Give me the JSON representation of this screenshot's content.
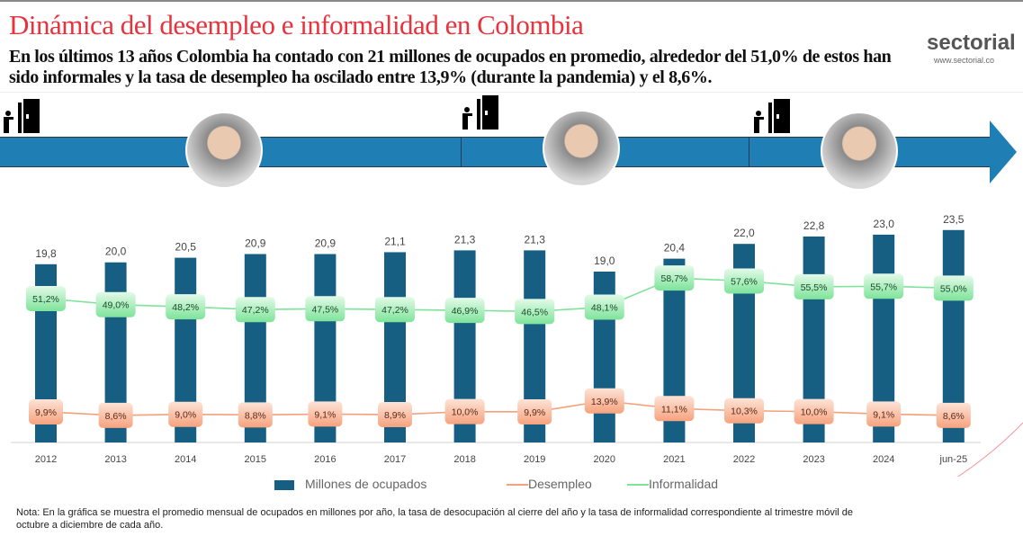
{
  "header": {
    "title": "Dinámica del desempleo e informalidad en Colombia",
    "subtitle": "En los últimos 13 años Colombia ha contado con 21 millones de ocupados en promedio, alrededor del 51,0% de estos han sido informales y la tasa de desempleo ha oscilado entre 13,9% (durante la pandemia) y el 8,6%.",
    "logo": "sectorial",
    "logo_url": "www.sectorial.co"
  },
  "timeline": {
    "icons": [
      "door-exit-icon",
      "door-exit-icon",
      "door-exit-icon"
    ],
    "photos": [
      "president-portrait-1",
      "president-portrait-2",
      "president-portrait-3"
    ],
    "color": "#1f7fb5"
  },
  "chart_data": {
    "type": "bar",
    "categories": [
      "2012",
      "2013",
      "2014",
      "2015",
      "2016",
      "2017",
      "2018",
      "2019",
      "2020",
      "2021",
      "2022",
      "2023",
      "2024",
      "jun-25"
    ],
    "series": [
      {
        "name": "Millones de ocupados",
        "type": "bar",
        "color": "#165e82",
        "values": [
          19.8,
          20.0,
          20.5,
          20.9,
          20.9,
          21.1,
          21.3,
          21.3,
          19.0,
          20.4,
          22.0,
          22.8,
          23.0,
          23.5
        ],
        "labels": [
          "19,8",
          "20,0",
          "20,5",
          "20,9",
          "20,9",
          "21,1",
          "21,3",
          "21,3",
          "19,0",
          "20,4",
          "22,0",
          "22,8",
          "23,0",
          "23,5"
        ]
      },
      {
        "name": "Desempleo",
        "type": "line",
        "color": "#f4a07a",
        "values": [
          9.9,
          8.6,
          9.0,
          8.8,
          9.1,
          8.9,
          10.0,
          9.9,
          13.9,
          11.1,
          10.3,
          10.0,
          9.1,
          8.6
        ],
        "labels": [
          "9,9%",
          "8,6%",
          "9,0%",
          "8,8%",
          "9,1%",
          "8,9%",
          "10,0%",
          "9,9%",
          "13,9%",
          "11,1%",
          "10,3%",
          "10,0%",
          "9,1%",
          "8,6%"
        ]
      },
      {
        "name": "Informalidad",
        "type": "line",
        "color": "#7ee39a",
        "values": [
          51.2,
          49.0,
          48.2,
          47.2,
          47.5,
          47.2,
          46.9,
          46.5,
          48.1,
          58.7,
          57.6,
          55.5,
          55.7,
          55.0
        ],
        "labels": [
          "51,2%",
          "49,0%",
          "48,2%",
          "47,2%",
          "47,5%",
          "47,2%",
          "46,9%",
          "46,5%",
          "48,1%",
          "58,7%",
          "57,6%",
          "55,5%",
          "55,7%",
          "55,0%"
        ]
      }
    ],
    "legend": "bottom",
    "grid": false
  },
  "note": "Nota: En la gráfica se muestra el promedio mensual de ocupados en millones por año, la tasa de desocupación al cierre del año y la tasa de informalidad correspondiente al trimestre móvil de octubre a diciembre de cada año."
}
